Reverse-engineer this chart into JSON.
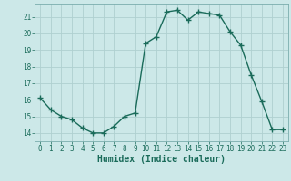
{
  "x": [
    0,
    1,
    2,
    3,
    4,
    5,
    6,
    7,
    8,
    9,
    10,
    11,
    12,
    13,
    14,
    15,
    16,
    17,
    18,
    19,
    20,
    21,
    22,
    23
  ],
  "y": [
    16.1,
    15.4,
    15.0,
    14.8,
    14.3,
    14.0,
    14.0,
    14.4,
    15.0,
    15.2,
    19.4,
    19.8,
    21.3,
    21.4,
    20.8,
    21.3,
    21.2,
    21.1,
    20.1,
    19.3,
    17.5,
    15.9,
    14.2,
    14.2
  ],
  "line_color": "#1a6b5a",
  "marker": "+",
  "markersize": 4,
  "linewidth": 1.0,
  "xlabel": "Humidex (Indice chaleur)",
  "xlabel_fontsize": 7,
  "xlim": [
    -0.5,
    23.5
  ],
  "ylim": [
    13.5,
    21.8
  ],
  "yticks": [
    14,
    15,
    16,
    17,
    18,
    19,
    20,
    21
  ],
  "xticks": [
    0,
    1,
    2,
    3,
    4,
    5,
    6,
    7,
    8,
    9,
    10,
    11,
    12,
    13,
    14,
    15,
    16,
    17,
    18,
    19,
    20,
    21,
    22,
    23
  ],
  "bg_color": "#cce8e8",
  "grid_color": "#afd0d0",
  "tick_fontsize": 5.5
}
